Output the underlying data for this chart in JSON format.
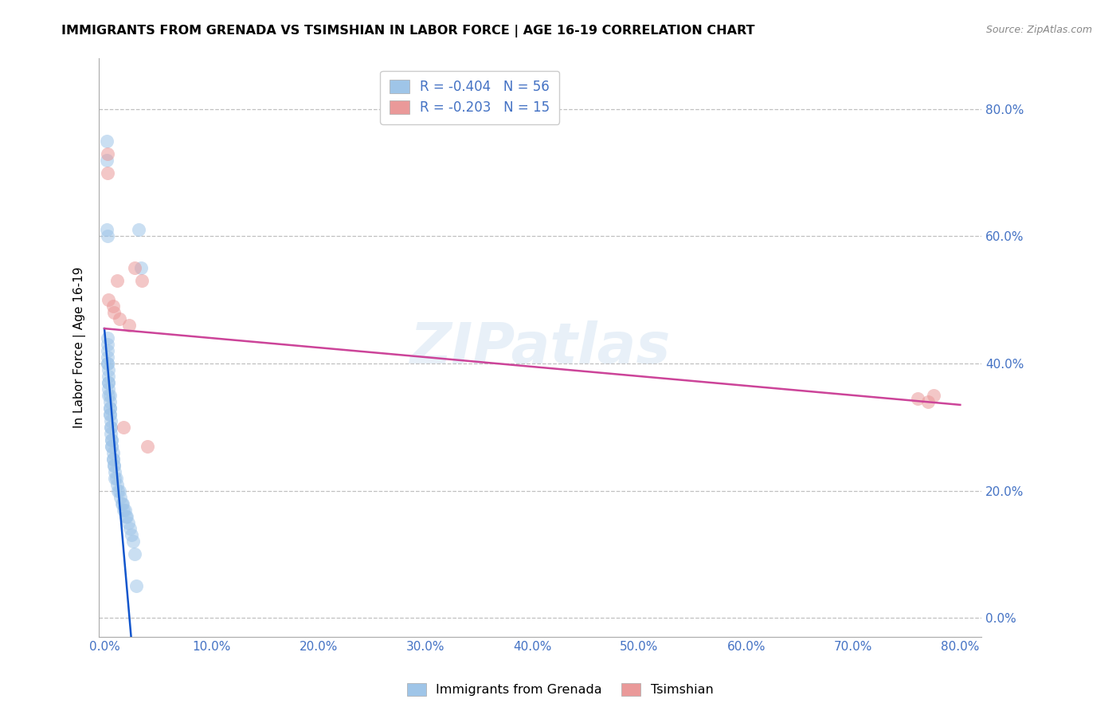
{
  "title": "IMMIGRANTS FROM GRENADA VS TSIMSHIAN IN LABOR FORCE | AGE 16-19 CORRELATION CHART",
  "source": "Source: ZipAtlas.com",
  "ylabel": "In Labor Force | Age 16-19",
  "legend_entry1": "R = -0.404   N = 56",
  "legend_entry2": "R = -0.203   N = 15",
  "color_blue": "#9fc5e8",
  "color_pink": "#ea9999",
  "color_blue_line": "#1155cc",
  "color_pink_line": "#cc4499",
  "color_axis_labels": "#4472c4",
  "background": "#ffffff",
  "grenada_x": [
    0.002,
    0.002,
    0.002,
    0.003,
    0.003,
    0.003,
    0.003,
    0.003,
    0.003,
    0.003,
    0.004,
    0.004,
    0.004,
    0.004,
    0.004,
    0.004,
    0.005,
    0.005,
    0.005,
    0.005,
    0.005,
    0.005,
    0.006,
    0.006,
    0.006,
    0.006,
    0.007,
    0.007,
    0.007,
    0.007,
    0.008,
    0.008,
    0.008,
    0.009,
    0.009,
    0.01,
    0.01,
    0.011,
    0.012,
    0.013,
    0.014,
    0.015,
    0.016,
    0.017,
    0.018,
    0.019,
    0.02,
    0.021,
    0.022,
    0.024,
    0.025,
    0.027,
    0.028,
    0.03,
    0.032,
    0.034
  ],
  "grenada_y": [
    0.75,
    0.72,
    0.61,
    0.6,
    0.44,
    0.43,
    0.42,
    0.41,
    0.4,
    0.4,
    0.39,
    0.38,
    0.37,
    0.37,
    0.36,
    0.35,
    0.35,
    0.34,
    0.33,
    0.33,
    0.32,
    0.32,
    0.31,
    0.3,
    0.3,
    0.29,
    0.28,
    0.28,
    0.27,
    0.27,
    0.26,
    0.25,
    0.25,
    0.24,
    0.24,
    0.23,
    0.22,
    0.22,
    0.21,
    0.2,
    0.2,
    0.19,
    0.18,
    0.18,
    0.17,
    0.17,
    0.16,
    0.16,
    0.15,
    0.14,
    0.13,
    0.12,
    0.1,
    0.05,
    0.61,
    0.55
  ],
  "tsimshian_x": [
    0.003,
    0.003,
    0.004,
    0.008,
    0.009,
    0.012,
    0.014,
    0.018,
    0.023,
    0.028,
    0.035,
    0.04,
    0.76,
    0.77,
    0.775
  ],
  "tsimshian_y": [
    0.73,
    0.7,
    0.5,
    0.49,
    0.48,
    0.53,
    0.47,
    0.3,
    0.46,
    0.55,
    0.53,
    0.27,
    0.345,
    0.34,
    0.35
  ],
  "blue_line_x": [
    0.0,
    0.025
  ],
  "blue_line_y": [
    0.455,
    -0.03
  ],
  "pink_line_x": [
    0.0,
    0.8
  ],
  "pink_line_y": [
    0.455,
    0.335
  ],
  "xlim": [
    -0.005,
    0.82
  ],
  "ylim": [
    -0.03,
    0.88
  ],
  "xtick_vals": [
    0.0,
    0.1,
    0.2,
    0.3,
    0.4,
    0.5,
    0.6,
    0.7,
    0.8
  ],
  "ytick_vals": [
    0.0,
    0.2,
    0.4,
    0.6,
    0.8
  ]
}
